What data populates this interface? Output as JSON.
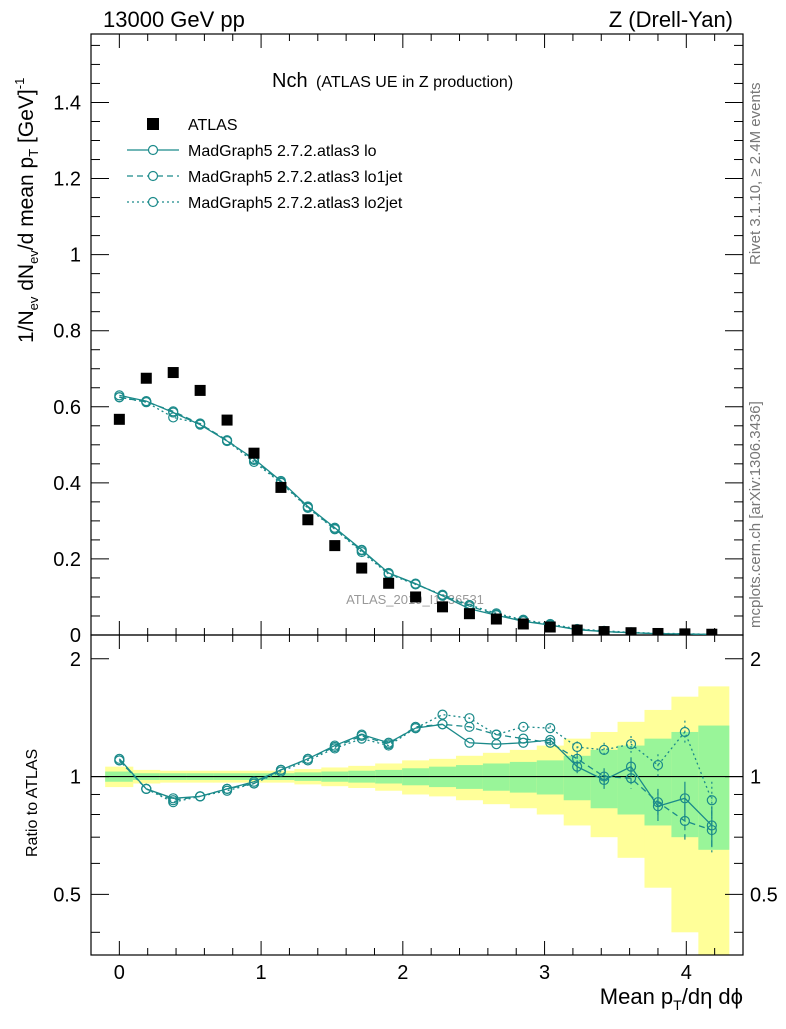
{
  "header": {
    "left": "13000 GeV pp",
    "right": "Z (Drell-Yan)"
  },
  "plot_title": {
    "main": "Nch",
    "sub": "(ATLAS UE in Z production)"
  },
  "watermark": "ATLAS_2019_I1736531",
  "side_labels": {
    "rivet": "Rivet 3.1.10, ≥ 2.4M events",
    "mcplots": "mcplots.cern.ch [arXiv:1306.3436]"
  },
  "ylabel_main": "1/N_ev dN_ev/d mean p_T [GeV]^-1",
  "ylabel_ratio": "Ratio to ATLAS",
  "xlabel": "Mean p_T/dη dϕ",
  "colors": {
    "mc": "#1b8a8a",
    "data": "#000000",
    "band_inner": "#99f599",
    "band_outer": "#ffff99"
  },
  "legend": [
    {
      "label": "ATLAS",
      "style": "square"
    },
    {
      "label": "MadGraph5 2.7.2.atlas3 lo",
      "style": "solid"
    },
    {
      "label": "MadGraph5 2.7.2.atlas3 lo1jet",
      "style": "dashed"
    },
    {
      "label": "MadGraph5 2.7.2.atlas3 lo2jet",
      "style": "dotted"
    }
  ],
  "chart_data": [
    {
      "type": "scatter",
      "panel": "main",
      "xlim": [
        -0.2,
        4.4
      ],
      "ylim": [
        0,
        1.58
      ],
      "x_ticks": [
        "0",
        "1",
        "2",
        "3",
        "4"
      ],
      "y_ticks": [
        "0",
        "0.2",
        "0.4",
        "0.6",
        "0.8",
        "1",
        "1.2",
        "1.4"
      ],
      "x": [
        0.0,
        0.19,
        0.38,
        0.57,
        0.76,
        0.95,
        1.14,
        1.33,
        1.52,
        1.71,
        1.9,
        2.09,
        2.28,
        2.47,
        2.66,
        2.85,
        3.04,
        3.23,
        3.42,
        3.61,
        3.8,
        3.99,
        4.18
      ],
      "series": [
        {
          "name": "ATLAS",
          "values": [
            0.567,
            0.675,
            0.69,
            0.643,
            0.565,
            0.478,
            0.388,
            0.303,
            0.235,
            0.176,
            0.136,
            0.1,
            0.074,
            0.056,
            0.042,
            0.029,
            0.021,
            0.013,
            0.009,
            0.006,
            0.004,
            0.003,
            0.002
          ]
        },
        {
          "name": "MadGraph5 2.7.2.atlas3 lo",
          "values": [
            0.63,
            0.615,
            0.585,
            0.553,
            0.51,
            0.463,
            0.405,
            0.338,
            0.282,
            0.224,
            0.163,
            0.135,
            0.103,
            0.069,
            0.052,
            0.036,
            0.026,
            0.014,
            0.009,
            0.006,
            0.0035,
            0.0026,
            0.0016
          ]
        },
        {
          "name": "MadGraph5 2.7.2.atlas3 lo1jet",
          "values": [
            0.625,
            0.613,
            0.588,
            0.555,
            0.512,
            0.46,
            0.402,
            0.336,
            0.279,
            0.222,
            0.162,
            0.134,
            0.104,
            0.076,
            0.054,
            0.038,
            0.026,
            0.015,
            0.009,
            0.006,
            0.0035,
            0.0024,
            0.0015
          ]
        },
        {
          "name": "MadGraph5 2.7.2.atlas3 lo2jet",
          "values": [
            0.625,
            0.612,
            0.572,
            0.556,
            0.51,
            0.455,
            0.4,
            0.334,
            0.278,
            0.218,
            0.16,
            0.133,
            0.106,
            0.079,
            0.057,
            0.04,
            0.029,
            0.016,
            0.011,
            0.007,
            0.0044,
            0.0033,
            0.0018
          ]
        }
      ]
    },
    {
      "type": "line",
      "panel": "ratio",
      "xlim": [
        -0.2,
        4.4
      ],
      "ylim": [
        0.35,
        2.3
      ],
      "x_ticks": [
        "0",
        "1",
        "2",
        "3",
        "4"
      ],
      "y_ticks": [
        "0.5",
        "1",
        "2"
      ],
      "x": [
        0.0,
        0.19,
        0.38,
        0.57,
        0.76,
        0.95,
        1.14,
        1.33,
        1.52,
        1.71,
        1.9,
        2.09,
        2.28,
        2.47,
        2.66,
        2.85,
        3.04,
        3.23,
        3.42,
        3.61,
        3.8,
        3.99,
        4.18
      ],
      "band_edges": [
        -0.1,
        0.095,
        0.285,
        0.475,
        0.665,
        0.855,
        1.045,
        1.235,
        1.425,
        1.615,
        1.805,
        1.995,
        2.185,
        2.375,
        2.565,
        2.755,
        2.945,
        3.135,
        3.325,
        3.515,
        3.705,
        3.895,
        4.085,
        4.3
      ],
      "band_inner": [
        0.03,
        0.02,
        0.02,
        0.02,
        0.02,
        0.02,
        0.02,
        0.025,
        0.03,
        0.035,
        0.04,
        0.05,
        0.06,
        0.07,
        0.08,
        0.09,
        0.1,
        0.13,
        0.17,
        0.2,
        0.25,
        0.3,
        0.35
      ],
      "band_outer": [
        0.06,
        0.04,
        0.035,
        0.035,
        0.035,
        0.035,
        0.035,
        0.045,
        0.055,
        0.065,
        0.08,
        0.1,
        0.11,
        0.13,
        0.15,
        0.17,
        0.2,
        0.25,
        0.3,
        0.38,
        0.48,
        0.6,
        0.7
      ],
      "series": [
        {
          "name": "MadGraph5 2.7.2.atlas3 lo",
          "values": [
            1.11,
            0.93,
            0.88,
            0.89,
            0.93,
            0.97,
            1.04,
            1.11,
            1.2,
            1.28,
            1.22,
            1.33,
            1.36,
            1.22,
            1.21,
            1.22,
            1.24,
            1.06,
            0.98,
            1.06,
            0.84,
            0.88,
            0.75
          ],
          "errors": [
            0,
            0,
            0,
            0,
            0,
            0,
            0,
            0,
            0,
            0,
            0,
            0,
            0,
            0,
            0,
            0,
            0.02,
            0.04,
            0.05,
            0.06,
            0.07,
            0.09,
            0.09
          ]
        },
        {
          "name": "MadGraph5 2.7.2.atlas3 lo1jet",
          "values": [
            1.1,
            0.93,
            0.87,
            0.89,
            0.93,
            0.96,
            1.04,
            1.11,
            1.19,
            1.27,
            1.21,
            1.34,
            1.36,
            1.34,
            1.28,
            1.25,
            1.22,
            1.11,
            1.0,
            0.99,
            0.86,
            0.77,
            0.73
          ],
          "errors": [
            0,
            0,
            0,
            0,
            0,
            0,
            0,
            0,
            0,
            0,
            0,
            0,
            0,
            0,
            0,
            0,
            0.02,
            0.04,
            0.05,
            0.06,
            0.07,
            0.08,
            0.09
          ]
        },
        {
          "name": "MadGraph5 2.7.2.atlas3 lo2jet",
          "values": [
            1.1,
            0.93,
            0.86,
            0.89,
            0.92,
            0.96,
            1.03,
            1.1,
            1.18,
            1.25,
            1.2,
            1.33,
            1.44,
            1.41,
            1.28,
            1.34,
            1.33,
            1.19,
            1.17,
            1.21,
            1.07,
            1.3,
            0.87
          ],
          "errors": [
            0,
            0,
            0,
            0,
            0,
            0,
            0,
            0,
            0,
            0,
            0,
            0,
            0,
            0,
            0,
            0,
            0.02,
            0.04,
            0.05,
            0.06,
            0.07,
            0.09,
            0.1
          ]
        }
      ]
    }
  ]
}
